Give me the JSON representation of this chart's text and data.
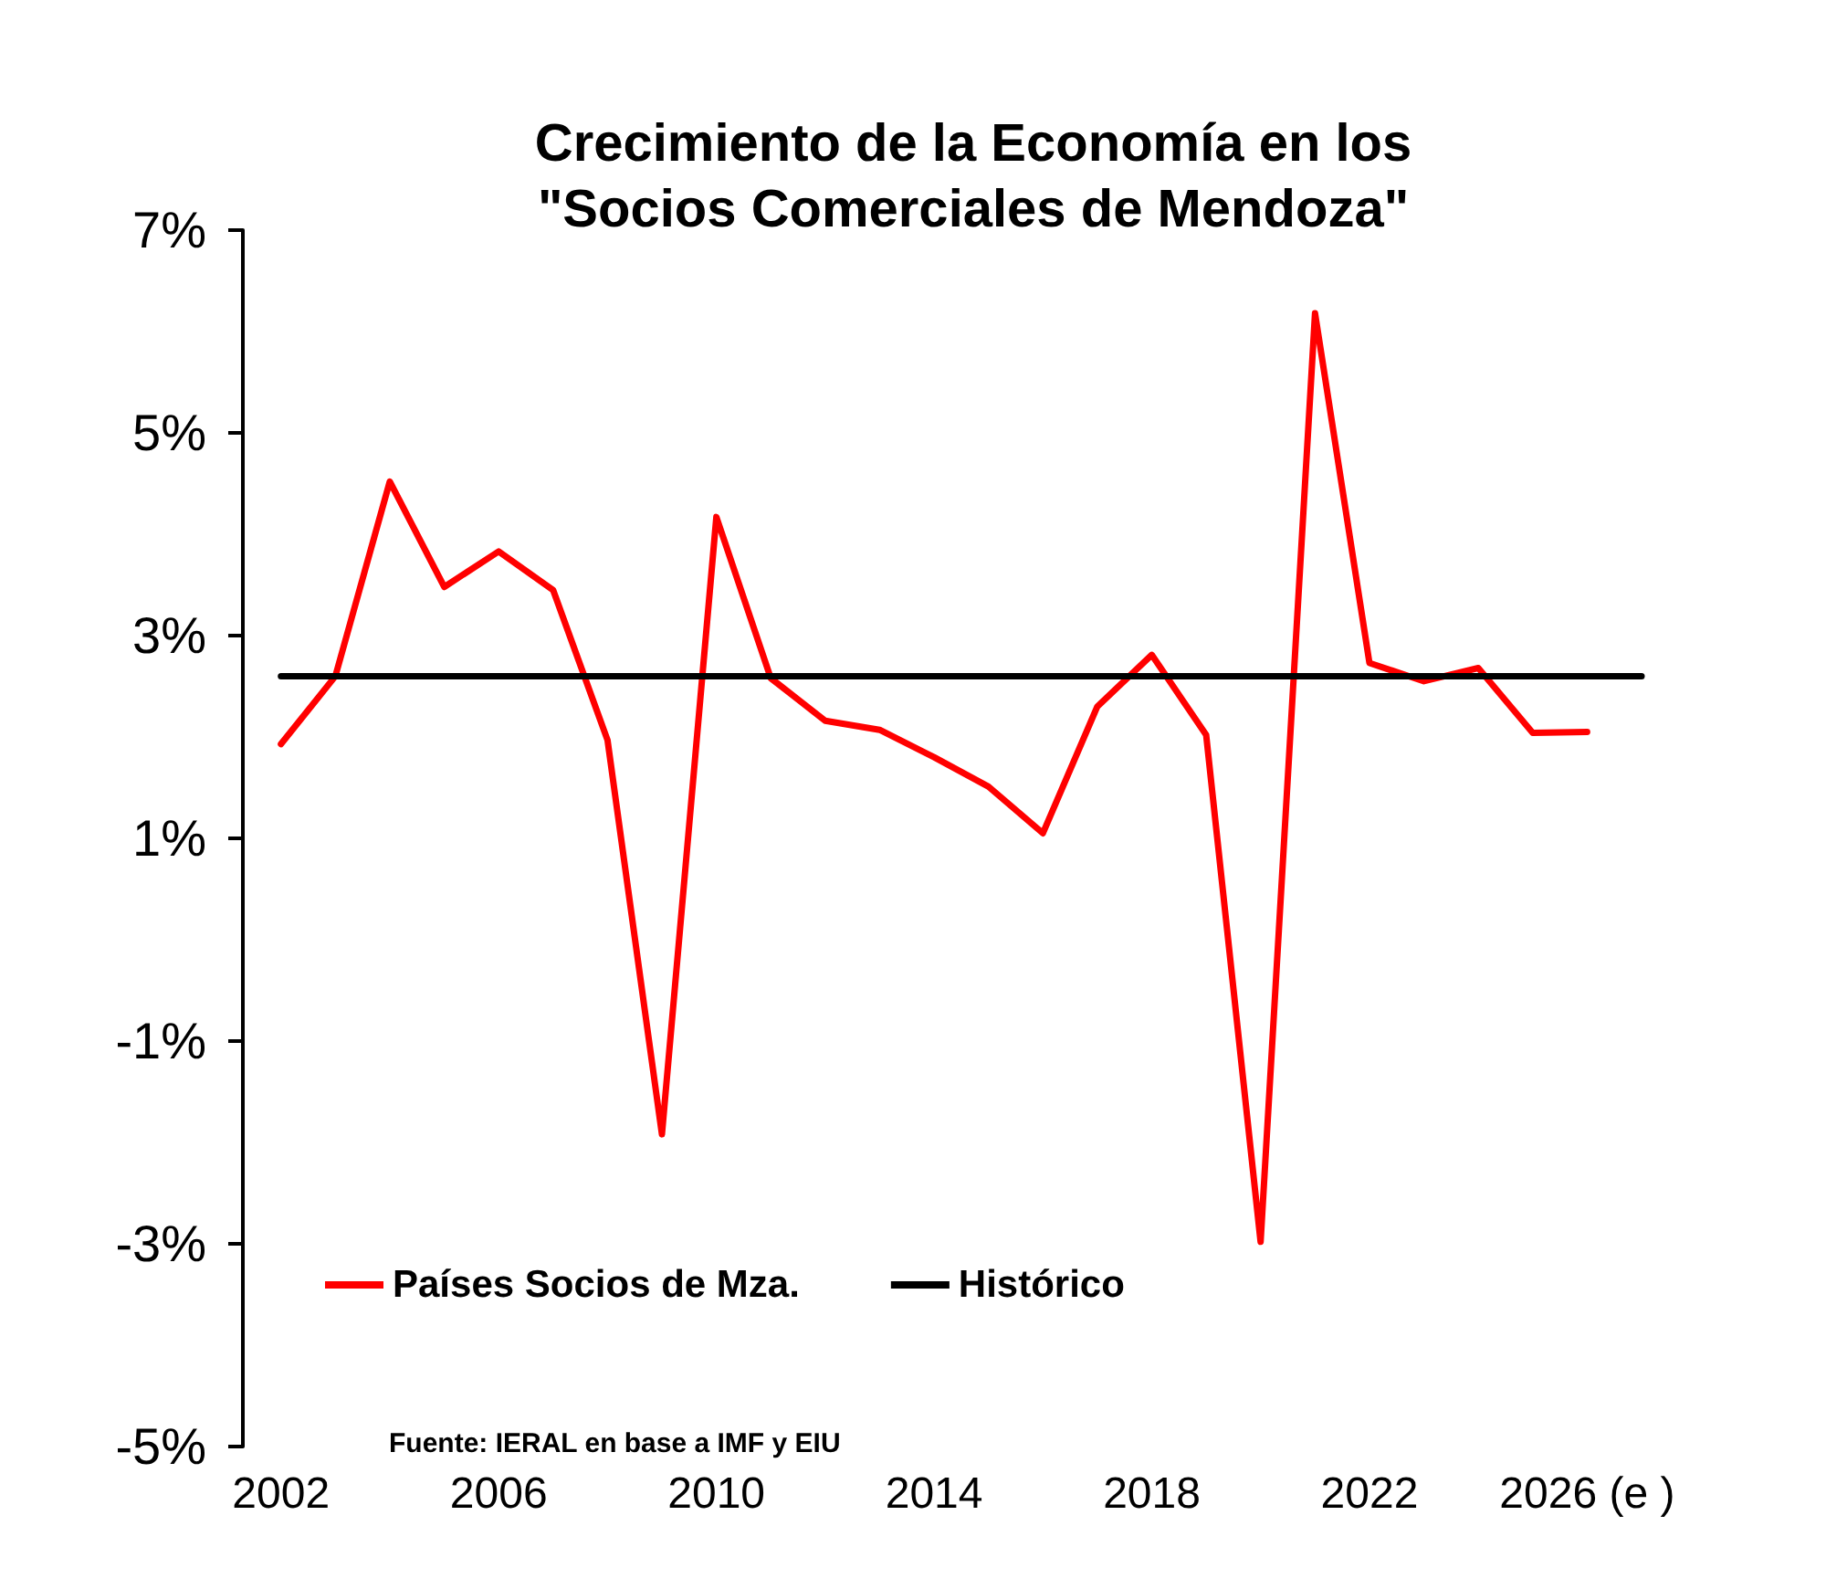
{
  "chart_data": {
    "type": "line",
    "title": "Crecimiento de la Economía en los\n\"Socios Comerciales de Mendoza\"",
    "x": [
      2002,
      2003,
      2004,
      2005,
      2006,
      2007,
      2008,
      2009,
      2010,
      2011,
      2012,
      2013,
      2014,
      2015,
      2016,
      2017,
      2018,
      2019,
      2020,
      2021,
      2022,
      2023,
      2024,
      2025,
      2026
    ],
    "series": [
      {
        "name": "Países Socios de Mza.",
        "color": "#ff0000",
        "values": [
          1.93,
          2.6,
          4.52,
          3.48,
          3.83,
          3.45,
          1.97,
          -1.92,
          4.17,
          2.58,
          2.16,
          2.07,
          1.8,
          1.51,
          1.05,
          2.3,
          2.81,
          2.02,
          -2.98,
          6.18,
          2.73,
          2.55,
          2.68,
          2.04,
          2.05
        ]
      },
      {
        "name": "Histórico",
        "color": "#000000",
        "x": [
          2002,
          2027
        ],
        "values": [
          2.6,
          2.6
        ]
      }
    ],
    "xlim": [
      2001.3,
      2027
    ],
    "xticks": [
      2002,
      2006,
      2010,
      2014,
      2018,
      2022,
      {
        "value": 2026,
        "label": "2026 (e )"
      }
    ],
    "ylim": [
      -5,
      7
    ],
    "yticks": [
      {
        "value": -5,
        "label": "-5%"
      },
      {
        "value": -3,
        "label": "-3%"
      },
      {
        "value": -1,
        "label": "-1%"
      },
      {
        "value": 1,
        "label": "1%"
      },
      {
        "value": 3,
        "label": "3%"
      },
      {
        "value": 5,
        "label": "5%"
      },
      {
        "value": 7,
        "label": "7%"
      }
    ],
    "grid": false,
    "legend": "bottom left",
    "marker": "none",
    "line_style": "solid",
    "annotations": [
      "Fuente: IERAL en base a IMF y EIU"
    ]
  }
}
